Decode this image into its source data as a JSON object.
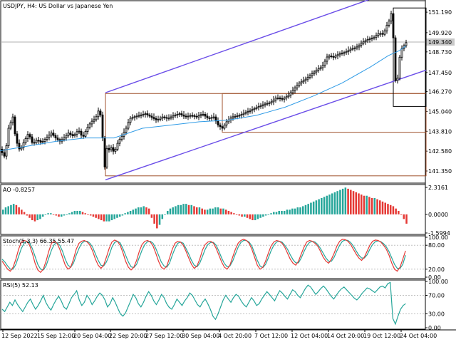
{
  "chart_data": {
    "type": "candlestick",
    "title": "USDJPY, H4:  US Dollar vs Japanese Yen",
    "current_price": "149.340",
    "price_axis": {
      "ticks": [
        151.19,
        149.92,
        148.73,
        147.45,
        146.27,
        145.04,
        143.81,
        142.58,
        141.35
      ],
      "tick_labels": [
        "151.190",
        "149.920",
        "148.730",
        "147.450",
        "146.270",
        "145.040",
        "143.810",
        "142.580",
        "141.350"
      ],
      "range": [
        140.6,
        151.9
      ]
    },
    "x_labels": [
      "12 Sep 2022",
      "15 Sep 12:00",
      "20 Sep 04:00",
      "22 Sep 20:00",
      "27 Sep 12:00",
      "30 Sep 04:00",
      "4 Oct 20:00",
      "7 Oct 12:00",
      "12 Oct 04:00",
      "14 Oct 20:00",
      "19 Oct 12:00",
      "24 Oct 04:00"
    ],
    "close_path": [
      [
        0,
        142.7
      ],
      [
        7,
        142.2
      ],
      [
        12,
        144.0
      ],
      [
        18,
        144.7
      ],
      [
        22,
        143.3
      ],
      [
        28,
        142.6
      ],
      [
        33,
        143.1
      ],
      [
        40,
        143.7
      ],
      [
        46,
        143.0
      ],
      [
        52,
        143.3
      ],
      [
        58,
        143.1
      ],
      [
        65,
        143.4
      ],
      [
        72,
        143.7
      ],
      [
        78,
        143.4
      ],
      [
        84,
        143.2
      ],
      [
        90,
        143.4
      ],
      [
        96,
        143.7
      ],
      [
        103,
        143.5
      ],
      [
        110,
        143.9
      ],
      [
        116,
        143.4
      ],
      [
        122,
        144.0
      ],
      [
        128,
        144.4
      ],
      [
        134,
        144.6
      ],
      [
        140,
        145.3
      ],
      [
        144,
        143.4
      ],
      [
        146,
        142.4
      ],
      [
        147,
        141.6
      ],
      [
        149,
        141.9
      ],
      [
        151,
        143.6
      ],
      [
        154,
        142.2
      ],
      [
        156,
        142.8
      ],
      [
        160,
        142.5
      ],
      [
        163,
        142.8
      ],
      [
        166,
        143.2
      ],
      [
        171,
        143.5
      ],
      [
        177,
        144.0
      ],
      [
        182,
        144.6
      ],
      [
        188,
        144.7
      ],
      [
        196,
        144.8
      ],
      [
        204,
        144.9
      ],
      [
        212,
        144.7
      ],
      [
        220,
        144.5
      ],
      [
        228,
        144.7
      ],
      [
        236,
        144.6
      ],
      [
        244,
        144.8
      ],
      [
        252,
        144.9
      ],
      [
        260,
        144.7
      ],
      [
        268,
        144.8
      ],
      [
        276,
        144.7
      ],
      [
        284,
        144.9
      ],
      [
        292,
        144.6
      ],
      [
        300,
        144.7
      ],
      [
        306,
        144.2
      ],
      [
        312,
        144.0
      ],
      [
        318,
        144.4
      ],
      [
        326,
        144.7
      ],
      [
        336,
        144.8
      ],
      [
        346,
        145.0
      ],
      [
        356,
        145.2
      ],
      [
        366,
        145.4
      ],
      [
        372,
        145.5
      ],
      [
        380,
        145.6
      ],
      [
        388,
        145.9
      ],
      [
        396,
        145.8
      ],
      [
        404,
        146.0
      ],
      [
        412,
        146.4
      ],
      [
        420,
        146.8
      ],
      [
        428,
        147.0
      ],
      [
        436,
        147.3
      ],
      [
        444,
        147.6
      ],
      [
        452,
        147.8
      ],
      [
        460,
        148.5
      ],
      [
        468,
        148.4
      ],
      [
        476,
        148.6
      ],
      [
        484,
        148.7
      ],
      [
        492,
        148.9
      ],
      [
        500,
        149.0
      ],
      [
        508,
        149.3
      ],
      [
        516,
        149.5
      ],
      [
        524,
        149.6
      ],
      [
        532,
        149.9
      ],
      [
        538,
        149.8
      ],
      [
        544,
        150.5
      ],
      [
        548,
        150.8
      ],
      [
        550,
        151.4
      ],
      [
        552,
        149.6
      ],
      [
        554,
        147.5
      ],
      [
        556,
        146.4
      ],
      [
        558,
        147.1
      ],
      [
        560,
        148.0
      ],
      [
        562,
        148.8
      ],
      [
        565,
        149.0
      ],
      [
        570,
        149.3
      ]
    ],
    "ma_path": [
      [
        0,
        142.6
      ],
      [
        40,
        142.9
      ],
      [
        80,
        143.2
      ],
      [
        120,
        143.4
      ],
      [
        160,
        143.4
      ],
      [
        200,
        144.0
      ],
      [
        240,
        144.2
      ],
      [
        280,
        144.4
      ],
      [
        320,
        144.5
      ],
      [
        360,
        144.8
      ],
      [
        400,
        145.3
      ],
      [
        440,
        146.0
      ],
      [
        480,
        146.8
      ],
      [
        520,
        147.8
      ],
      [
        545,
        148.5
      ],
      [
        560,
        148.8
      ],
      [
        570,
        149.1
      ]
    ],
    "channel_upper": [
      [
        148,
        146.2
      ],
      [
        520,
        152.0
      ]
    ],
    "channel_lower": [
      [
        148,
        140.8
      ],
      [
        598,
        147.6
      ]
    ],
    "rectangles": [
      {
        "color": "brown",
        "x0": 148,
        "x1": 598,
        "y0": 141.05,
        "y1": 146.15
      },
      {
        "color": "brown",
        "x0": 312,
        "x1": 598,
        "y0": 143.75,
        "y1": 146.15
      },
      {
        "color": "black",
        "x0": 552,
        "x1": 598,
        "y0": 145.35,
        "y1": 151.45
      }
    ],
    "ao": {
      "label": "AO -0.8257",
      "ticks": [
        "2.3161",
        "0.0000",
        "-1.5994"
      ],
      "range": [
        -1.5994,
        2.3161
      ],
      "colors": {
        "up": "#26a69a",
        "down": "#e53935"
      },
      "values": [
        0.4,
        0.6,
        0.7,
        0.8,
        0.9,
        0.8,
        0.6,
        0.4,
        0.2,
        -0.1,
        -0.3,
        -0.5,
        -0.6,
        -0.5,
        -0.4,
        -0.2,
        0.0,
        0.1,
        0.1,
        0.0,
        -0.1,
        -0.2,
        -0.2,
        -0.1,
        0.0,
        0.1,
        0.2,
        0.3,
        0.3,
        0.3,
        0.2,
        0.1,
        0.0,
        -0.1,
        -0.2,
        -0.3,
        -0.4,
        -0.5,
        -0.6,
        -0.6,
        -0.6,
        -0.5,
        -0.4,
        -0.3,
        -0.2,
        -0.1,
        0.1,
        0.2,
        0.3,
        0.4,
        0.5,
        0.6,
        0.6,
        0.7,
        0.6,
        0.5,
        -0.3,
        -0.8,
        -1.2,
        -0.9,
        -0.4,
        0.0,
        0.3,
        0.5,
        0.6,
        0.7,
        0.8,
        0.8,
        0.9,
        0.9,
        0.8,
        0.8,
        0.7,
        0.6,
        0.6,
        0.5,
        0.4,
        0.4,
        0.5,
        0.5,
        0.6,
        0.6,
        0.5,
        0.5,
        0.4,
        0.3,
        0.2,
        0.1,
        0.0,
        -0.1,
        -0.2,
        -0.2,
        -0.3,
        -0.4,
        -0.5,
        -0.5,
        -0.4,
        -0.3,
        -0.2,
        -0.1,
        0.0,
        0.1,
        0.2,
        0.2,
        0.3,
        0.3,
        0.3,
        0.4,
        0.4,
        0.5,
        0.5,
        0.6,
        0.6,
        0.7,
        0.8,
        0.9,
        1.0,
        1.1,
        1.2,
        1.3,
        1.4,
        1.5,
        1.6,
        1.7,
        1.8,
        1.9,
        2.0,
        2.1,
        2.2,
        2.3,
        2.2,
        2.1,
        2.0,
        1.9,
        1.8,
        1.7,
        1.6,
        1.6,
        1.5,
        1.4,
        1.4,
        1.3,
        1.2,
        1.1,
        1.0,
        0.9,
        0.8,
        0.7,
        0.5,
        0.3,
        0.0,
        -0.4,
        -0.8
      ]
    },
    "stoch": {
      "label": "Stoch(5,3,3) 66.35 55.47",
      "ticks": [
        "100.00",
        "80.00",
        "20.00",
        "0.00"
      ],
      "main_color": "#e53935",
      "signal_color": "#26a69a",
      "main": [
        40,
        30,
        20,
        15,
        25,
        45,
        70,
        88,
        92,
        90,
        80,
        60,
        35,
        18,
        12,
        20,
        40,
        65,
        85,
        90,
        85,
        70,
        50,
        30,
        20,
        25,
        45,
        70,
        85,
        90,
        92,
        88,
        80,
        65,
        45,
        30,
        22,
        30,
        50,
        72,
        88,
        93,
        90,
        80,
        62,
        40,
        25,
        18,
        25,
        42,
        65,
        82,
        90,
        92,
        88,
        78,
        60,
        40,
        25,
        20,
        28,
        48,
        70,
        85,
        90,
        88,
        80,
        65,
        48,
        32,
        22,
        28,
        45,
        68,
        82,
        88,
        90,
        85,
        72,
        55,
        38,
        25,
        20,
        30,
        50,
        70,
        85,
        92,
        95,
        92,
        85,
        70,
        50,
        30,
        20,
        25,
        40,
        60,
        78,
        88,
        92,
        90,
        85,
        75,
        60,
        45,
        35,
        30,
        40,
        58,
        75,
        88,
        92,
        90,
        85,
        78,
        65,
        50,
        40,
        35,
        45,
        60,
        78,
        90,
        95,
        94,
        90,
        82,
        70,
        58,
        48,
        42,
        50,
        65,
        80,
        90,
        93,
        92,
        88,
        80,
        70,
        55,
        35,
        20,
        15,
        25,
        45,
        66
      ],
      "signal": [
        45,
        38,
        28,
        20,
        20,
        32,
        52,
        72,
        85,
        90,
        86,
        72,
        52,
        32,
        20,
        18,
        28,
        48,
        68,
        82,
        87,
        80,
        65,
        45,
        30,
        25,
        35,
        55,
        72,
        85,
        90,
        90,
        85,
        75,
        58,
        42,
        30,
        28,
        38,
        55,
        75,
        87,
        90,
        86,
        72,
        55,
        38,
        26,
        24,
        32,
        50,
        68,
        82,
        89,
        90,
        85,
        72,
        55,
        38,
        28,
        25,
        35,
        55,
        72,
        85,
        88,
        85,
        72,
        58,
        42,
        30,
        26,
        35,
        52,
        70,
        82,
        87,
        87,
        80,
        65,
        48,
        34,
        26,
        28,
        40,
        58,
        75,
        87,
        92,
        92,
        88,
        78,
        60,
        42,
        28,
        24,
        32,
        48,
        66,
        80,
        88,
        90,
        88,
        80,
        70,
        56,
        44,
        36,
        36,
        48,
        64,
        78,
        87,
        90,
        88,
        82,
        72,
        60,
        48,
        40,
        40,
        50,
        66,
        80,
        90,
        93,
        92,
        87,
        78,
        66,
        55,
        48,
        48,
        56,
        70,
        82,
        89,
        91,
        89,
        84,
        76,
        64,
        48,
        32,
        22,
        22,
        32,
        55
      ]
    },
    "rsi": {
      "label": "RSI(5) 52.13",
      "ticks": [
        "100.00",
        "70.00",
        "30.00",
        "0.00"
      ],
      "color": "#26a69a",
      "values": [
        40,
        35,
        45,
        55,
        48,
        60,
        50,
        42,
        35,
        45,
        55,
        62,
        50,
        40,
        48,
        58,
        70,
        55,
        45,
        38,
        50,
        60,
        68,
        58,
        45,
        40,
        52,
        65,
        72,
        80,
        60,
        48,
        55,
        70,
        62,
        50,
        58,
        68,
        75,
        70,
        60,
        45,
        52,
        65,
        55,
        42,
        30,
        25,
        32,
        45,
        58,
        72,
        65,
        52,
        45,
        55,
        68,
        78,
        70,
        58,
        50,
        60,
        72,
        65,
        52,
        44,
        40,
        50,
        62,
        55,
        48,
        58,
        65,
        75,
        70,
        60,
        50,
        45,
        55,
        62,
        52,
        40,
        25,
        18,
        30,
        45,
        60,
        70,
        62,
        55,
        65,
        72,
        68,
        58,
        50,
        45,
        55,
        65,
        58,
        48,
        52,
        62,
        70,
        78,
        72,
        65,
        58,
        70,
        80,
        75,
        68,
        62,
        72,
        82,
        78,
        70,
        65,
        75,
        85,
        92,
        88,
        80,
        72,
        78,
        85,
        90,
        84,
        76,
        68,
        62,
        70,
        78,
        84,
        88,
        82,
        76,
        70,
        64,
        60,
        66,
        74,
        80,
        86,
        84,
        80,
        76,
        82,
        88,
        90,
        86,
        95,
        98,
        20,
        8,
        25,
        40,
        48,
        52
      ]
    }
  }
}
